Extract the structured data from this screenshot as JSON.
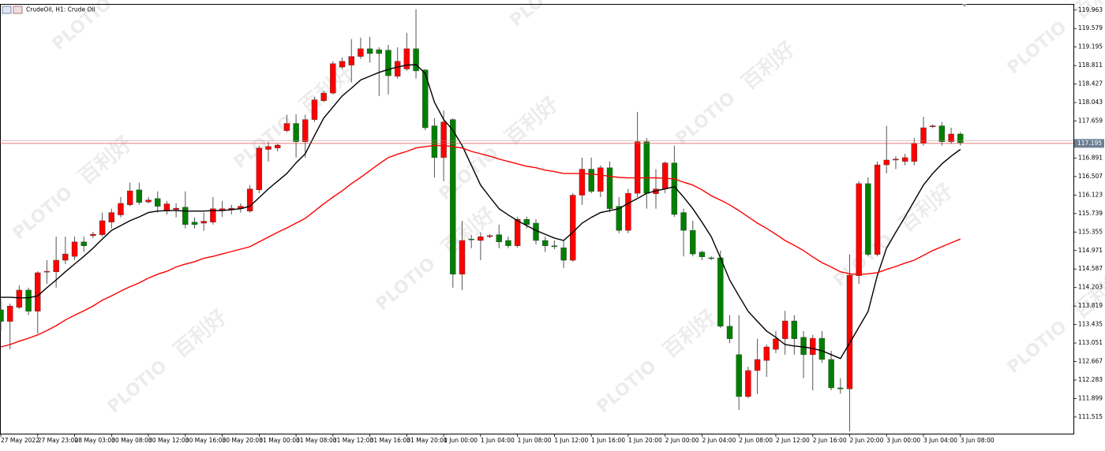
{
  "chart_data": {
    "type": "candlestick",
    "title": "CrudeOil, H1:  Crude Oil",
    "categories": [
      "27 May 2022",
      null,
      null,
      null,
      "27 May 23:00",
      null,
      null,
      null,
      "28 May 03:00",
      null,
      null,
      null,
      "30 May 08:00",
      null,
      null,
      null,
      "30 May 12:00",
      null,
      null,
      null,
      "30 May 16:00",
      null,
      null,
      null,
      "30 May 20:00",
      null,
      null,
      null,
      "31 May 00:00",
      null,
      null,
      null,
      "31 May 08:00",
      null,
      null,
      null,
      "31 May 12:00",
      null,
      null,
      null,
      "31 May 16:00",
      null,
      null,
      null,
      "31 May 20:00",
      null,
      null,
      null,
      "1 Jun 00:00",
      null,
      null,
      null,
      "1 Jun 04:00",
      null,
      null,
      null,
      "1 Jun 08:00",
      null,
      null,
      null,
      "1 Jun 12:00",
      null,
      null,
      null,
      "1 Jun 16:00",
      null,
      null,
      null,
      "1 Jun 20:00",
      null,
      null,
      null,
      "2 Jun 00:00",
      null,
      null,
      null,
      "2 Jun 04:00",
      null,
      null,
      null,
      "2 Jun 08:00",
      null,
      null,
      null,
      "2 Jun 12:00",
      null,
      null,
      null,
      "2 Jun 16:00",
      null,
      null,
      null,
      "2 Jun 20:00",
      null,
      null,
      null,
      "3 Jun 00:00",
      null,
      null,
      null,
      "3 Jun 04:00",
      null,
      null,
      null,
      "3 Jun 08:00"
    ],
    "open": [
      113.74,
      113.5,
      113.79,
      114.15,
      113.71,
      114.53,
      114.53,
      114.77,
      114.85,
      115.15,
      115.28,
      115.3,
      115.56,
      115.71,
      115.92,
      116.23,
      115.98,
      116.05,
      115.79,
      115.82,
      115.87,
      115.56,
      115.54,
      115.56,
      115.8,
      115.82,
      115.84,
      115.79,
      116.23,
      117.07,
      117.1,
      117.46,
      117.61,
      117.23,
      117.69,
      118.08,
      118.24,
      118.78,
      118.82,
      119.0,
      119.16,
      119.14,
      119.13,
      118.59,
      118.74,
      119.16,
      118.72,
      117.56,
      116.9,
      117.69,
      114.48,
      115.21,
      115.18,
      115.26,
      115.3,
      115.18,
      115.07,
      115.62,
      115.54,
      115.18,
      115.07,
      115.03,
      114.77,
      116.12,
      116.66,
      116.2,
      116.69,
      115.89,
      115.39,
      116.16,
      117.23,
      116.15,
      116.25,
      116.79,
      115.76,
      115.39,
      114.94,
      114.82,
      114.82,
      113.4,
      112.81,
      111.94,
      112.48,
      112.69,
      112.92,
      113.14,
      113.51,
      113.17,
      112.81,
      113.15,
      112.71,
      112.12,
      112.1,
      114.45,
      116.36,
      114.89,
      116.75,
      116.85,
      116.82,
      116.82,
      117.2,
      117.54,
      117.56,
      117.23,
      117.39
    ],
    "high": [
      113.95,
      113.87,
      114.25,
      114.2,
      114.54,
      114.77,
      115.26,
      115.26,
      115.26,
      115.26,
      115.36,
      115.76,
      115.84,
      116.08,
      116.38,
      116.38,
      116.08,
      116.2,
      116.0,
      115.95,
      116.2,
      115.66,
      115.76,
      116.08,
      116.0,
      115.92,
      115.95,
      116.33,
      117.15,
      117.23,
      117.2,
      117.79,
      117.8,
      117.79,
      118.16,
      118.29,
      118.9,
      118.98,
      119.36,
      119.39,
      119.41,
      119.19,
      119.24,
      119.19,
      119.49,
      119.98,
      118.74,
      117.72,
      117.88,
      117.72,
      115.59,
      115.3,
      115.35,
      115.31,
      115.51,
      115.26,
      115.67,
      115.67,
      115.62,
      115.26,
      115.18,
      115.18,
      116.16,
      116.9,
      116.9,
      116.74,
      116.82,
      116.08,
      116.25,
      117.85,
      117.31,
      116.66,
      116.82,
      117.15,
      115.84,
      115.59,
      114.97,
      114.85,
      114.97,
      113.63,
      113.63,
      112.56,
      113.14,
      113.02,
      113.3,
      113.72,
      113.63,
      113.3,
      113.22,
      113.3,
      112.89,
      112.32,
      114.89,
      116.41,
      116.49,
      116.82,
      117.56,
      116.93,
      116.98,
      117.31,
      117.75,
      117.59,
      117.64,
      117.52,
      117.43
    ],
    "low": [
      113.3,
      112.92,
      113.76,
      113.63,
      113.25,
      114.28,
      114.2,
      114.69,
      114.77,
      114.94,
      115.23,
      115.26,
      115.43,
      115.66,
      115.89,
      115.92,
      115.95,
      115.76,
      115.72,
      115.66,
      115.43,
      115.43,
      115.38,
      115.51,
      115.67,
      115.72,
      115.76,
      115.76,
      116.16,
      116.82,
      117.03,
      117.43,
      116.9,
      116.9,
      117.64,
      118.05,
      118.21,
      118.74,
      118.46,
      118.95,
      118.87,
      118.18,
      118.21,
      118.54,
      118.7,
      118.54,
      117.47,
      116.49,
      116.41,
      114.2,
      114.15,
      115.02,
      114.77,
      115.23,
      115.02,
      115.02,
      115.03,
      115.43,
      115.1,
      114.94,
      115.0,
      114.61,
      114.74,
      115.92,
      116.16,
      116.08,
      115.76,
      115.33,
      115.33,
      116.08,
      115.84,
      115.84,
      116.16,
      115.67,
      114.85,
      114.85,
      114.77,
      114.77,
      113.36,
      113.05,
      111.66,
      111.91,
      111.99,
      112.35,
      112.84,
      112.81,
      112.81,
      112.32,
      112.07,
      112.64,
      112.07,
      112.0,
      111.22,
      114.28,
      114.85,
      114.85,
      116.57,
      116.66,
      116.74,
      116.74,
      117.15,
      117.51,
      117.15,
      117.18,
      117.15
    ],
    "close": [
      113.5,
      113.82,
      114.15,
      113.71,
      114.51,
      114.54,
      114.77,
      114.9,
      115.15,
      115.07,
      115.31,
      115.59,
      115.76,
      115.95,
      116.21,
      115.97,
      116.02,
      115.89,
      115.94,
      115.85,
      115.51,
      115.51,
      115.58,
      115.84,
      115.84,
      115.85,
      115.89,
      116.25,
      117.1,
      117.13,
      117.16,
      117.61,
      117.23,
      117.69,
      118.1,
      118.24,
      118.85,
      118.9,
      119.0,
      119.16,
      119.06,
      119.06,
      118.6,
      118.9,
      119.16,
      118.7,
      117.52,
      116.9,
      117.64,
      114.48,
      115.18,
      115.2,
      115.26,
      115.28,
      115.15,
      115.07,
      115.62,
      115.51,
      115.18,
      115.07,
      115.05,
      114.77,
      116.12,
      116.66,
      116.2,
      116.69,
      115.84,
      115.39,
      116.16,
      117.23,
      116.16,
      116.25,
      116.79,
      115.72,
      115.39,
      114.9,
      114.84,
      114.81,
      113.4,
      113.14,
      111.94,
      112.48,
      112.71,
      112.97,
      113.14,
      113.51,
      113.14,
      112.81,
      113.15,
      112.71,
      112.12,
      112.1,
      114.46,
      116.36,
      114.89,
      116.75,
      116.85,
      116.87,
      116.9,
      117.2,
      117.52,
      117.56,
      117.23,
      117.39,
      117.21
    ],
    "up_color": "#ff0000",
    "down_color": "#008000",
    "series": [
      {
        "color": "#000000",
        "values": [
          114.0,
          114.0,
          113.99,
          113.99,
          114.03,
          114.2,
          114.36,
          114.53,
          114.69,
          114.85,
          115.02,
          115.21,
          115.39,
          115.49,
          115.59,
          115.67,
          115.76,
          115.79,
          115.8,
          115.8,
          115.79,
          115.79,
          115.79,
          115.8,
          115.8,
          115.82,
          115.84,
          115.89,
          116.07,
          116.25,
          116.41,
          116.57,
          116.79,
          116.98,
          117.36,
          117.72,
          117.95,
          118.18,
          118.34,
          118.51,
          118.59,
          118.67,
          118.73,
          118.78,
          118.82,
          118.83,
          118.65,
          118.05,
          117.69,
          117.47,
          117.15,
          116.74,
          116.33,
          116.08,
          115.84,
          115.71,
          115.59,
          115.49,
          115.39,
          115.31,
          115.23,
          115.18,
          115.35,
          115.54,
          115.66,
          115.76,
          115.8,
          115.84,
          115.95,
          116.05,
          116.16,
          116.21,
          116.25,
          116.3,
          116.08,
          115.84,
          115.56,
          115.26,
          114.82,
          114.36,
          114.03,
          113.71,
          113.5,
          113.3,
          113.17,
          113.02,
          112.99,
          112.97,
          112.94,
          112.89,
          112.81,
          112.73,
          113.05,
          113.38,
          113.71,
          114.45,
          115.02,
          115.35,
          115.67,
          116.0,
          116.33,
          116.57,
          116.77,
          116.93,
          117.07
        ]
      },
      {
        "color": "#ff0000",
        "values": [
          112.97,
          113.02,
          113.09,
          113.15,
          113.22,
          113.31,
          113.41,
          113.53,
          113.63,
          113.72,
          113.82,
          113.94,
          114.03,
          114.13,
          114.22,
          114.3,
          114.4,
          114.48,
          114.54,
          114.63,
          114.69,
          114.74,
          114.81,
          114.85,
          114.9,
          114.95,
          115.0,
          115.05,
          115.15,
          115.25,
          115.35,
          115.44,
          115.54,
          115.64,
          115.79,
          115.94,
          116.08,
          116.21,
          116.36,
          116.49,
          116.63,
          116.77,
          116.9,
          116.97,
          117.03,
          117.1,
          117.13,
          117.15,
          117.15,
          117.13,
          117.1,
          117.03,
          116.98,
          116.93,
          116.87,
          116.82,
          116.77,
          116.72,
          116.69,
          116.64,
          116.61,
          116.57,
          116.57,
          116.57,
          116.56,
          116.54,
          116.51,
          116.49,
          116.48,
          116.48,
          116.48,
          116.48,
          116.47,
          116.46,
          116.39,
          116.33,
          116.23,
          116.11,
          116.02,
          115.92,
          115.8,
          115.67,
          115.54,
          115.43,
          115.31,
          115.18,
          115.08,
          114.97,
          114.84,
          114.72,
          114.63,
          114.53,
          114.49,
          114.47,
          114.49,
          114.51,
          114.58,
          114.64,
          114.71,
          114.77,
          114.87,
          114.97,
          115.05,
          115.13,
          115.21
        ]
      }
    ],
    "current_price": 117.195,
    "ylim": [
      111.17,
      120.09
    ],
    "yticks": [
      119.963,
      119.579,
      119.195,
      118.811,
      118.427,
      118.043,
      117.659,
      116.891,
      116.507,
      116.123,
      115.739,
      115.355,
      114.971,
      114.587,
      114.203,
      113.819,
      113.435,
      113.051,
      112.667,
      112.283,
      111.899,
      111.515
    ],
    "watermark": {
      "brand": "PLOTIO",
      "text": "百利好"
    }
  }
}
